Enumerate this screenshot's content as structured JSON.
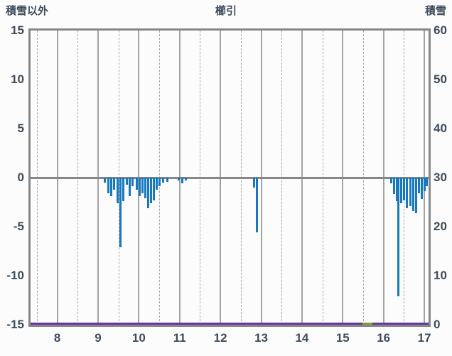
{
  "chart_data": {
    "type": "bar",
    "title": "櫛引",
    "x_domain": [
      7.345,
      17.103
    ],
    "left_axis": {
      "label": "積雪以外",
      "min": -15,
      "max": 15,
      "ticks": [
        15,
        10,
        5,
        0,
        -5,
        -10,
        -15
      ]
    },
    "right_axis": {
      "label": "積雪",
      "min": 0,
      "max": 60,
      "ticks": [
        60,
        50,
        40,
        30,
        20,
        10,
        0
      ]
    },
    "x_ticks": [
      8,
      9,
      10,
      11,
      12,
      13,
      14,
      15,
      16,
      17
    ],
    "grid": {
      "solid_color": "#a3a3a3",
      "dashed_color": "#a8a8a8",
      "frame_color": "#878787",
      "solid_at_integers": true,
      "dashed_at_halves": true
    },
    "bars": {
      "color": "#1878be",
      "points": [
        {
          "x": 9.17,
          "v": -0.5
        },
        {
          "x": 9.25,
          "v": -1.6
        },
        {
          "x": 9.32,
          "v": -1.9
        },
        {
          "x": 9.4,
          "v": -1.2
        },
        {
          "x": 9.48,
          "v": -2.6
        },
        {
          "x": 9.55,
          "v": -7.1
        },
        {
          "x": 9.62,
          "v": -2.4
        },
        {
          "x": 9.7,
          "v": -0.7
        },
        {
          "x": 9.77,
          "v": -1.9
        },
        {
          "x": 9.85,
          "v": -0.9
        },
        {
          "x": 9.95,
          "v": -1.2
        },
        {
          "x": 10.02,
          "v": -1.9
        },
        {
          "x": 10.09,
          "v": -1.6
        },
        {
          "x": 10.16,
          "v": -2.1
        },
        {
          "x": 10.23,
          "v": -3.1
        },
        {
          "x": 10.3,
          "v": -2.6
        },
        {
          "x": 10.37,
          "v": -2.3
        },
        {
          "x": 10.44,
          "v": -1.2
        },
        {
          "x": 10.51,
          "v": -0.9
        },
        {
          "x": 10.6,
          "v": -0.5
        },
        {
          "x": 10.7,
          "v": -0.4
        },
        {
          "x": 10.97,
          "v": -0.3
        },
        {
          "x": 11.07,
          "v": -0.6
        },
        {
          "x": 11.16,
          "v": -0.3
        },
        {
          "x": 12.83,
          "v": -1.0
        },
        {
          "x": 12.9,
          "v": -5.6
        },
        {
          "x": 16.19,
          "v": -0.6
        },
        {
          "x": 16.26,
          "v": -1.7
        },
        {
          "x": 16.33,
          "v": -2.4
        },
        {
          "x": 16.37,
          "v": -12.1
        },
        {
          "x": 16.44,
          "v": -2.6
        },
        {
          "x": 16.51,
          "v": -2.3
        },
        {
          "x": 16.58,
          "v": -3.1
        },
        {
          "x": 16.65,
          "v": -2.9
        },
        {
          "x": 16.72,
          "v": -3.4
        },
        {
          "x": 16.79,
          "v": -3.6
        },
        {
          "x": 16.86,
          "v": -1.6
        },
        {
          "x": 16.93,
          "v": -2.2
        },
        {
          "x": 17.0,
          "v": -1.4
        },
        {
          "x": 17.06,
          "v": -0.9
        }
      ]
    },
    "snow_line": {
      "name": "積雪",
      "color": "#6a34a3",
      "value": 0,
      "from": 7.345,
      "to": 17.103
    },
    "green_segment": {
      "color": "#7aa23c",
      "value": 0,
      "from": 15.48,
      "to": 15.72
    }
  }
}
